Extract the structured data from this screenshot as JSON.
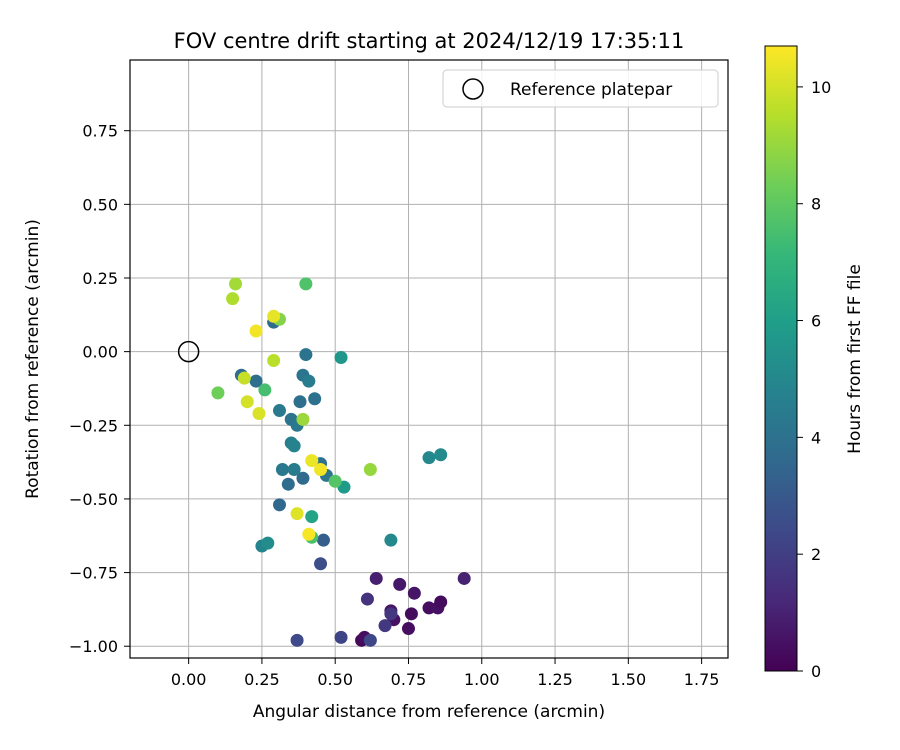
{
  "chart_data": {
    "type": "scatter",
    "title": "FOV centre drift starting at 2024/12/19 17:35:11",
    "xlabel": "Angular distance from reference (arcmin)",
    "ylabel": "Rotation from reference (arcmin)",
    "xlim": [
      -0.2,
      1.84
    ],
    "ylim": [
      -1.04,
      0.99
    ],
    "xticks": [
      0.0,
      0.25,
      0.5,
      0.75,
      1.0,
      1.25,
      1.5,
      1.75
    ],
    "xtick_labels": [
      "0.00",
      "0.25",
      "0.50",
      "0.75",
      "1.00",
      "1.25",
      "1.50",
      "1.75"
    ],
    "yticks": [
      -1.0,
      -0.75,
      -0.5,
      -0.25,
      0.0,
      0.25,
      0.5,
      0.75
    ],
    "ytick_labels": [
      "−1.00",
      "−0.75",
      "−0.50",
      "−0.25",
      "0.00",
      "0.25",
      "0.50",
      "0.75"
    ],
    "grid": true,
    "legend": {
      "placement": "top-right",
      "entries": [
        "Reference platepar"
      ]
    },
    "reference_point": {
      "x": 0.0,
      "y": 0.0
    },
    "colorbar": {
      "label": "Hours from first FF file",
      "colormap": "viridis",
      "range": [
        0,
        10.7
      ],
      "ticks": [
        0,
        2,
        4,
        6,
        8,
        10
      ],
      "tick_labels": [
        "0",
        "2",
        "4",
        "6",
        "8",
        "10"
      ],
      "stops": [
        "#440154",
        "#482878",
        "#3e4989",
        "#31688e",
        "#26828e",
        "#1f9e89",
        "#35b779",
        "#6ece58",
        "#b5de2b",
        "#fde725"
      ]
    },
    "series": [
      {
        "points": [
          {
            "x": 0.59,
            "y": -0.98,
            "c": 0.2
          },
          {
            "x": 0.6,
            "y": -0.97,
            "c": 0.4
          },
          {
            "x": 0.69,
            "y": -0.88,
            "c": 0.6
          },
          {
            "x": 0.7,
            "y": -0.91,
            "c": 0.5
          },
          {
            "x": 0.75,
            "y": -0.94,
            "c": 0.4
          },
          {
            "x": 0.76,
            "y": -0.89,
            "c": 0.3
          },
          {
            "x": 0.72,
            "y": -0.79,
            "c": 0.7
          },
          {
            "x": 0.77,
            "y": -0.82,
            "c": 0.6
          },
          {
            "x": 0.82,
            "y": -0.87,
            "c": 0.4
          },
          {
            "x": 0.85,
            "y": -0.87,
            "c": 0.5
          },
          {
            "x": 0.86,
            "y": -0.85,
            "c": 0.3
          },
          {
            "x": 0.64,
            "y": -0.77,
            "c": 0.9
          },
          {
            "x": 0.94,
            "y": -0.77,
            "c": 1.0
          },
          {
            "x": 0.61,
            "y": -0.84,
            "c": 1.6
          },
          {
            "x": 0.67,
            "y": -0.93,
            "c": 1.8
          },
          {
            "x": 0.69,
            "y": -0.89,
            "c": 1.7
          },
          {
            "x": 0.52,
            "y": -0.97,
            "c": 2.2
          },
          {
            "x": 0.62,
            "y": -0.98,
            "c": 2.3
          },
          {
            "x": 0.37,
            "y": -0.98,
            "c": 2.4
          },
          {
            "x": 0.45,
            "y": -0.72,
            "c": 2.6
          },
          {
            "x": 0.46,
            "y": -0.64,
            "c": 3.2
          },
          {
            "x": 0.31,
            "y": -0.52,
            "c": 3.6
          },
          {
            "x": 0.34,
            "y": -0.45,
            "c": 3.8
          },
          {
            "x": 0.39,
            "y": -0.43,
            "c": 3.7
          },
          {
            "x": 0.32,
            "y": -0.4,
            "c": 4.3
          },
          {
            "x": 0.36,
            "y": -0.4,
            "c": 4.5
          },
          {
            "x": 0.45,
            "y": -0.38,
            "c": 4.0
          },
          {
            "x": 0.47,
            "y": -0.42,
            "c": 4.2
          },
          {
            "x": 0.35,
            "y": -0.31,
            "c": 4.6
          },
          {
            "x": 0.36,
            "y": -0.32,
            "c": 4.8
          },
          {
            "x": 0.35,
            "y": -0.23,
            "c": 4.1
          },
          {
            "x": 0.37,
            "y": -0.25,
            "c": 4.3
          },
          {
            "x": 0.31,
            "y": -0.2,
            "c": 4.4
          },
          {
            "x": 0.38,
            "y": -0.17,
            "c": 3.9
          },
          {
            "x": 0.43,
            "y": -0.16,
            "c": 4.0
          },
          {
            "x": 0.39,
            "y": -0.08,
            "c": 4.2
          },
          {
            "x": 0.41,
            "y": -0.1,
            "c": 4.5
          },
          {
            "x": 0.4,
            "y": -0.01,
            "c": 4.1
          },
          {
            "x": 0.18,
            "y": -0.08,
            "c": 3.8
          },
          {
            "x": 0.23,
            "y": -0.1,
            "c": 3.9
          },
          {
            "x": 0.29,
            "y": 0.1,
            "c": 3.7
          },
          {
            "x": 0.52,
            "y": -0.02,
            "c": 5.6
          },
          {
            "x": 0.53,
            "y": -0.46,
            "c": 5.8
          },
          {
            "x": 0.42,
            "y": -0.56,
            "c": 6.2
          },
          {
            "x": 0.25,
            "y": -0.66,
            "c": 4.9
          },
          {
            "x": 0.27,
            "y": -0.65,
            "c": 5.2
          },
          {
            "x": 0.69,
            "y": -0.64,
            "c": 5.0
          },
          {
            "x": 0.82,
            "y": -0.36,
            "c": 5.0
          },
          {
            "x": 0.86,
            "y": -0.35,
            "c": 5.1
          },
          {
            "x": 0.26,
            "y": -0.13,
            "c": 7.5
          },
          {
            "x": 0.1,
            "y": -0.14,
            "c": 8.3
          },
          {
            "x": 0.4,
            "y": 0.23,
            "c": 7.7
          },
          {
            "x": 0.5,
            "y": -0.44,
            "c": 7.8
          },
          {
            "x": 0.42,
            "y": -0.63,
            "c": 7.6
          },
          {
            "x": 0.16,
            "y": 0.23,
            "c": 9.2
          },
          {
            "x": 0.15,
            "y": 0.18,
            "c": 9.4
          },
          {
            "x": 0.31,
            "y": 0.11,
            "c": 8.7
          },
          {
            "x": 0.29,
            "y": -0.03,
            "c": 9.6
          },
          {
            "x": 0.39,
            "y": -0.23,
            "c": 9.1
          },
          {
            "x": 0.62,
            "y": -0.4,
            "c": 9.0
          },
          {
            "x": 0.19,
            "y": -0.09,
            "c": 9.8
          },
          {
            "x": 0.2,
            "y": -0.17,
            "c": 10.0
          },
          {
            "x": 0.24,
            "y": -0.21,
            "c": 10.1
          },
          {
            "x": 0.23,
            "y": 0.07,
            "c": 10.5
          },
          {
            "x": 0.29,
            "y": 0.12,
            "c": 10.3
          },
          {
            "x": 0.37,
            "y": -0.55,
            "c": 10.2
          },
          {
            "x": 0.41,
            "y": -0.62,
            "c": 10.6
          },
          {
            "x": 0.42,
            "y": -0.37,
            "c": 10.4
          },
          {
            "x": 0.45,
            "y": -0.4,
            "c": 10.5
          }
        ]
      }
    ]
  }
}
